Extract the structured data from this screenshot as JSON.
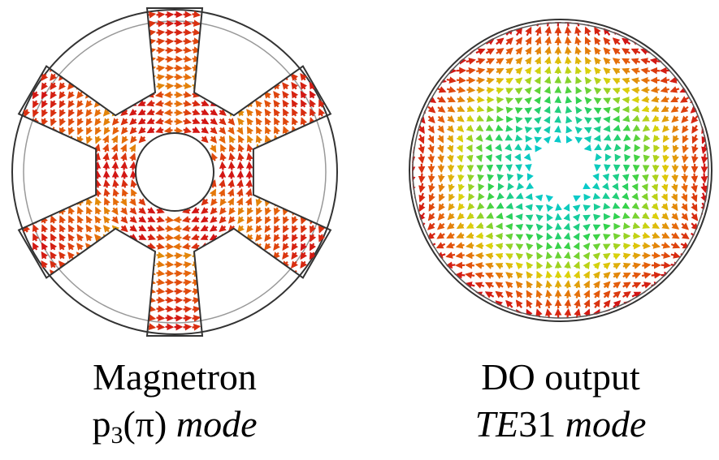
{
  "panels": [
    {
      "id": "magnetron",
      "title": "Magnetron",
      "mode_prefix": "p",
      "mode_subscript": "3",
      "mode_paren": "(π)",
      "mode_word": "mode",
      "vanes": 6,
      "legend_colors": [
        "#00c8e6",
        "#32d24b",
        "#dcd20a",
        "#e6640a",
        "#d21414"
      ]
    },
    {
      "id": "do-output",
      "title": "DO output",
      "mode_italic": "TE",
      "mode_number": "31",
      "mode_word": "mode",
      "azimuthal_index": 3,
      "legend_colors": [
        "#00c8e6",
        "#32d24b",
        "#dcd20a",
        "#e6640a",
        "#d21414"
      ]
    }
  ]
}
